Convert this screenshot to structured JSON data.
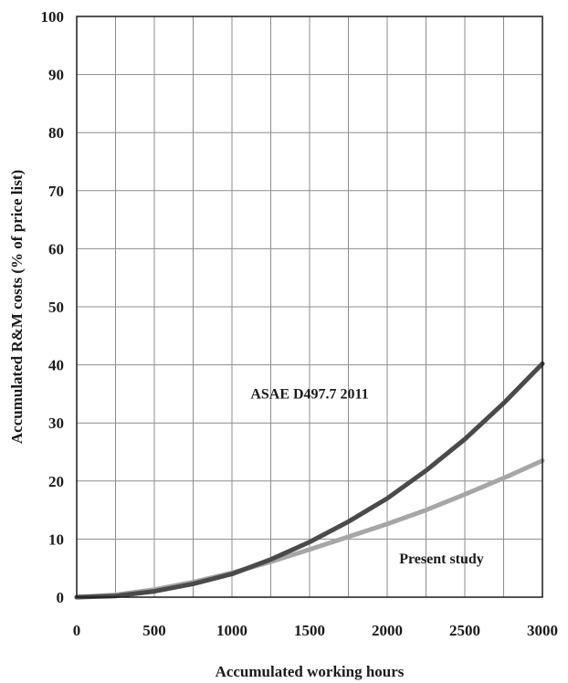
{
  "chart_data": {
    "type": "line",
    "xlabel": "Accumulated working hours",
    "ylabel": "Accumulated R&M costs (% of price list)",
    "xlim": [
      0,
      3000
    ],
    "ylim": [
      0,
      100
    ],
    "x_ticks": [
      0,
      500,
      1000,
      1500,
      2000,
      2500,
      3000
    ],
    "y_ticks": [
      0,
      10,
      20,
      30,
      40,
      50,
      60,
      70,
      80,
      90,
      100
    ],
    "grid": true,
    "x": [
      0,
      250,
      500,
      750,
      1000,
      1250,
      1500,
      1750,
      2000,
      2250,
      2500,
      2750,
      3000
    ],
    "series": [
      {
        "name": "ASAE D497.7 2011",
        "color": "#4a4a4a",
        "values": [
          0,
          0.2,
          1.0,
          2.3,
          4.0,
          6.5,
          9.5,
          13.0,
          17.0,
          21.8,
          27.2,
          33.4,
          40.2
        ]
      },
      {
        "name": "Present study",
        "color": "#a6a6a6",
        "values": [
          0,
          0.4,
          1.3,
          2.6,
          4.2,
          6.1,
          8.2,
          10.4,
          12.6,
          15.0,
          17.7,
          20.5,
          23.5
        ]
      }
    ]
  }
}
